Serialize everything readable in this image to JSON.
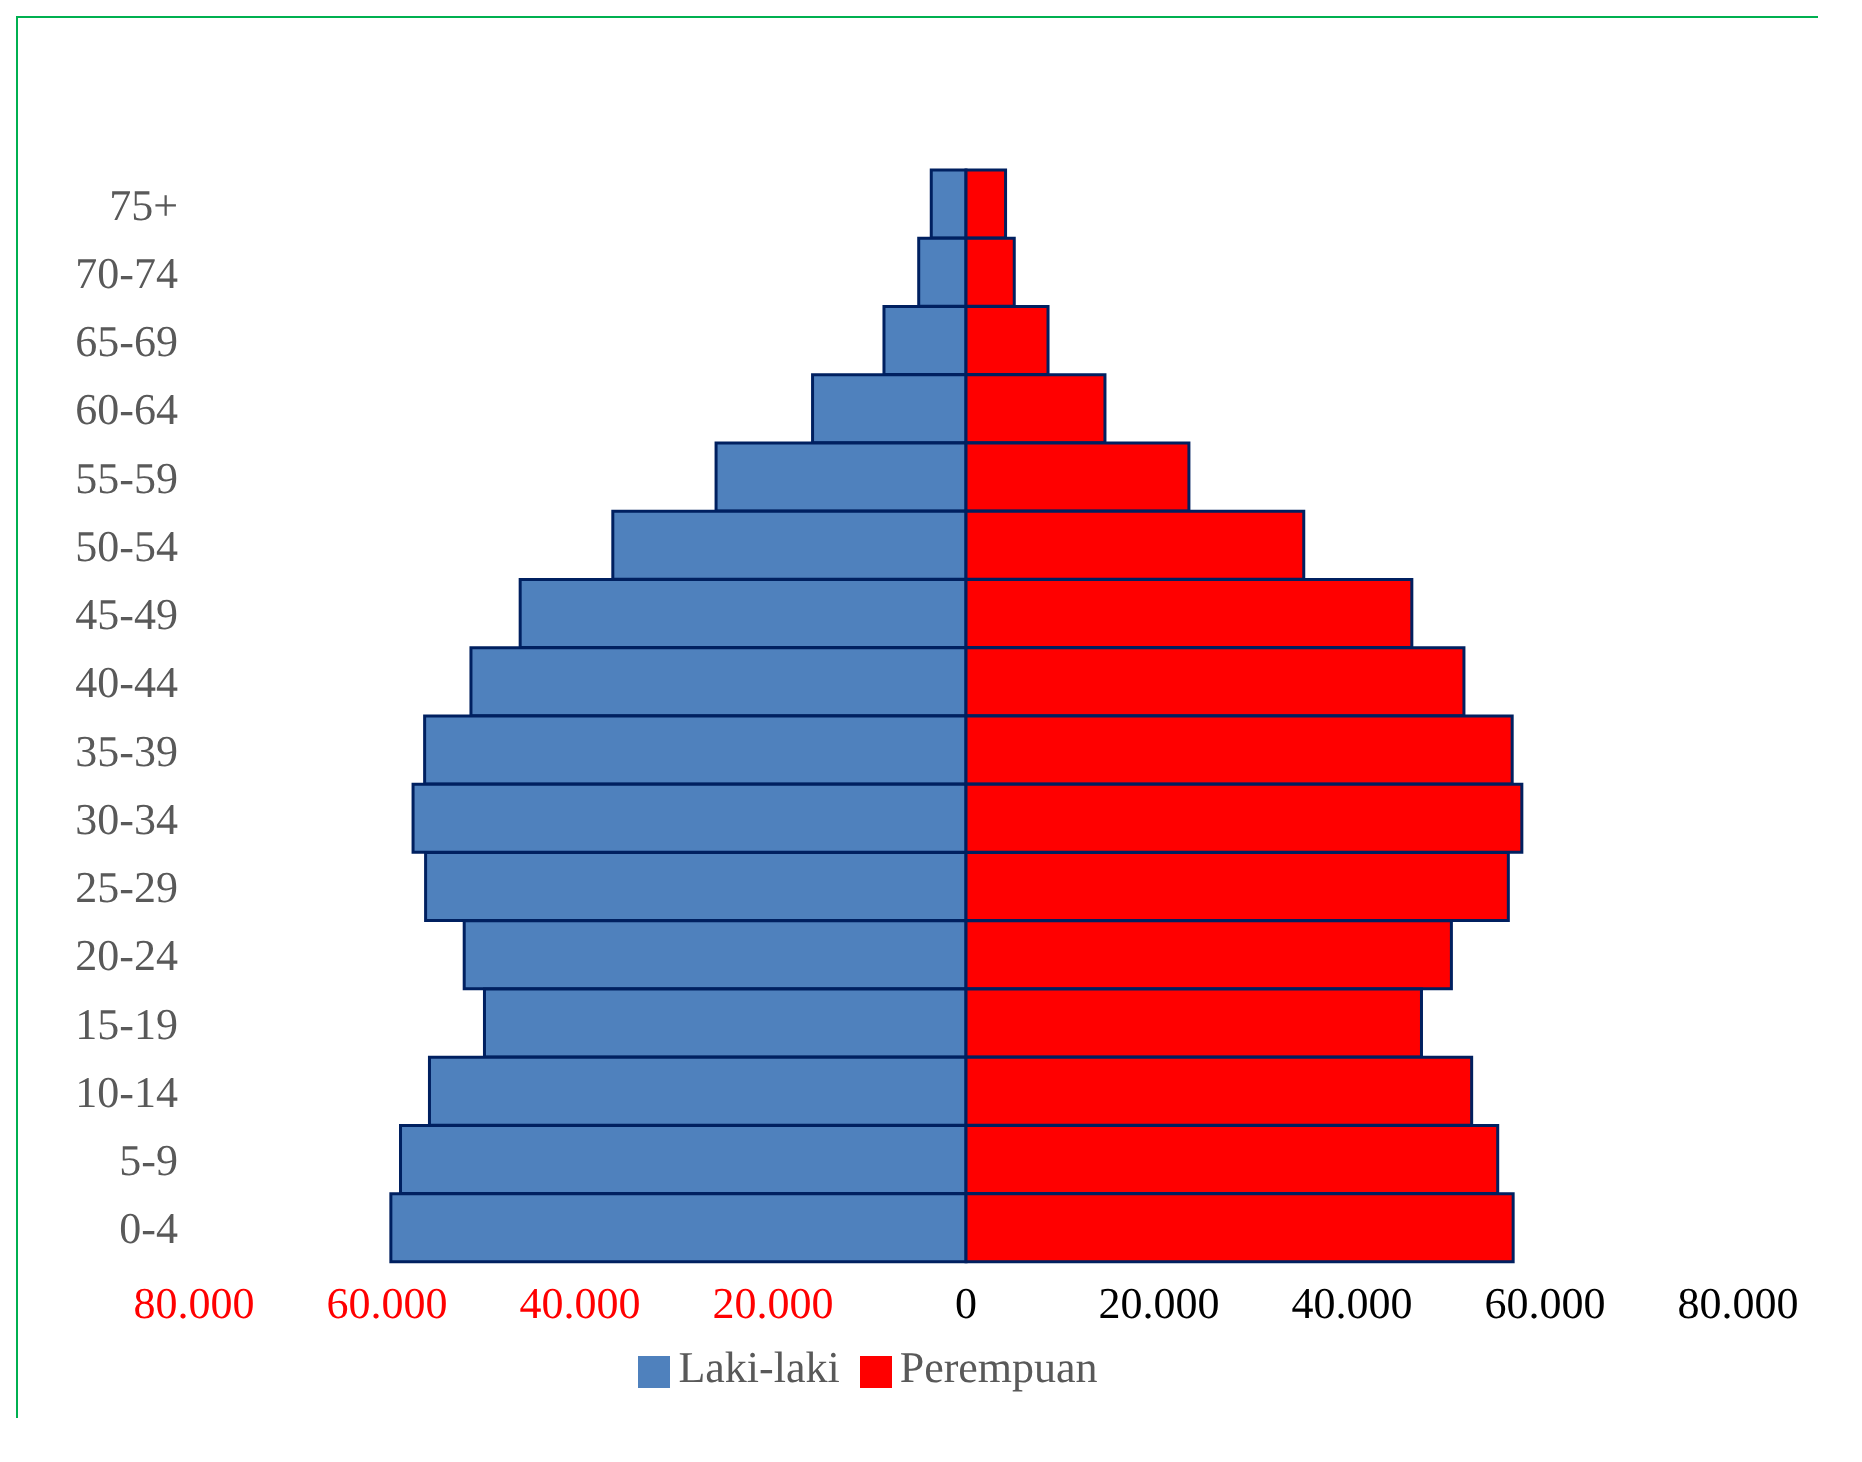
{
  "chart_data": {
    "type": "bar",
    "orientation": "horizontal",
    "stacked": true,
    "categories": [
      "75+",
      "70-74",
      "65-69",
      "60-64",
      "55-59",
      "50-54",
      "45-49",
      "40-44",
      "35-39",
      "30-34",
      "25-29",
      "20-24",
      "15-19",
      "10-14",
      "5-9",
      "0-4"
    ],
    "series": [
      {
        "name": "Laki-laki",
        "color": "#4f81bd",
        "values": [
          -3600,
          -4900,
          -8500,
          -15900,
          -25900,
          -36600,
          -46200,
          -51300,
          -56100,
          -57300,
          -56000,
          -52000,
          -49900,
          -55600,
          -58600,
          -59600
        ]
      },
      {
        "name": "Perempuan",
        "color": "#ff0000",
        "values": [
          4100,
          5000,
          8500,
          14400,
          23100,
          35000,
          46200,
          51600,
          56600,
          57600,
          56200,
          50300,
          47200,
          52400,
          55100,
          56700
        ]
      }
    ],
    "xlim": [
      -80000,
      80000
    ],
    "xticks": [
      {
        "value": -80000,
        "label": "80.000"
      },
      {
        "value": -60000,
        "label": "60.000"
      },
      {
        "value": -40000,
        "label": "40.000"
      },
      {
        "value": -20000,
        "label": "20.000"
      },
      0,
      {
        "value": 20000,
        "label": "20.000"
      },
      {
        "value": 40000,
        "label": "40.000"
      },
      {
        "value": 60000,
        "label": "60.000"
      },
      {
        "value": 80000,
        "label": "80.000"
      }
    ],
    "grid": false,
    "legend": "bottom"
  }
}
